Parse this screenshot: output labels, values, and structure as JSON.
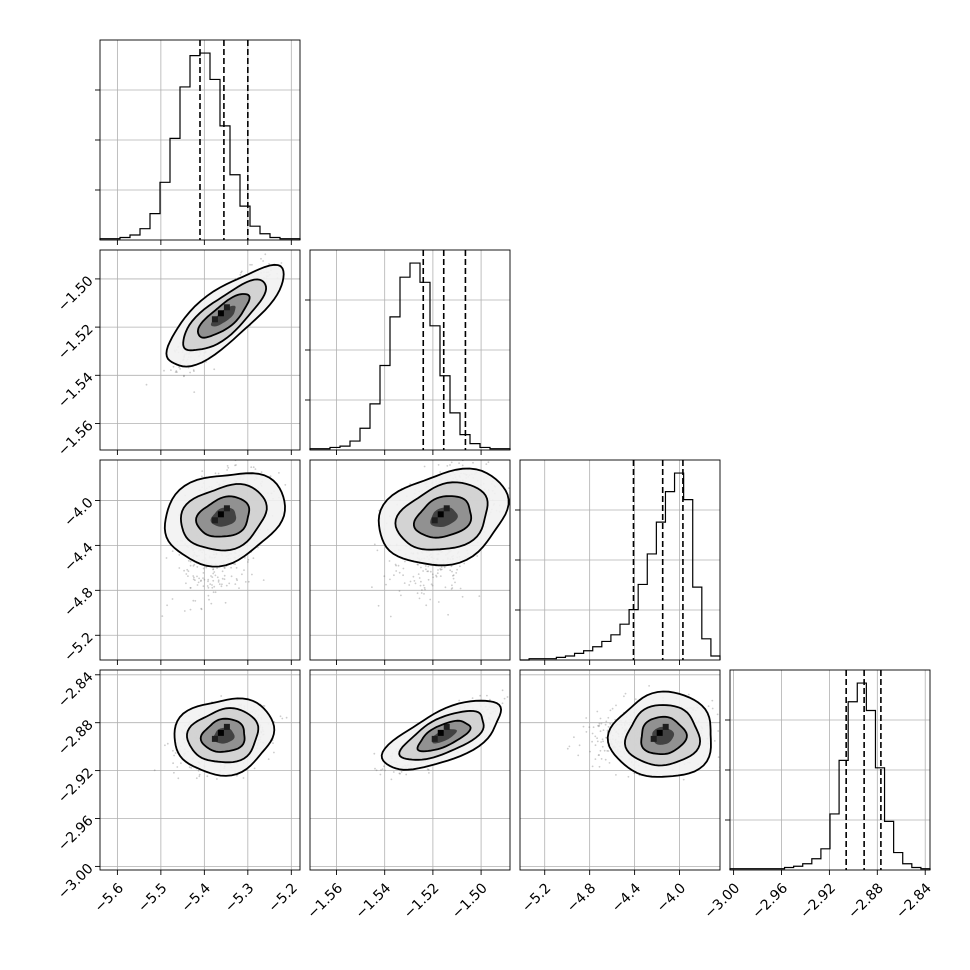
{
  "chart_data": {
    "type": "corner",
    "grid": true,
    "params": [
      {
        "range": [
          -5.64,
          -5.18
        ],
        "ticks": [
          -5.6,
          -5.5,
          -5.4,
          -5.3,
          -5.2
        ],
        "tick_labels": [
          "−5.6",
          "−5.5",
          "−5.4",
          "−5.3",
          "−5.2"
        ],
        "mean": -5.355,
        "sd": 0.042,
        "quantiles": [
          -5.41,
          -5.355,
          -5.3
        ],
        "hist_counts": [
          1,
          1,
          2,
          4,
          9,
          21,
          46,
          81,
          122,
          147,
          149,
          128,
          91,
          52,
          27,
          11,
          5,
          2,
          1,
          1
        ]
      },
      {
        "range": [
          -1.571,
          -1.488
        ],
        "ticks": [
          -1.56,
          -1.54,
          -1.52,
          -1.5
        ],
        "tick_labels": [
          "−1.56",
          "−1.54",
          "−1.52",
          "−1.50"
        ],
        "mean": -1.5155,
        "sd": 0.0085,
        "quantiles": [
          -1.524,
          -1.5155,
          -1.5065
        ],
        "hist_counts": [
          1,
          1,
          2,
          3,
          7,
          17,
          36,
          66,
          104,
          135,
          146,
          131,
          97,
          58,
          29,
          12,
          5,
          2,
          1,
          1
        ]
      },
      {
        "range": [
          -5.42,
          -3.64
        ],
        "ticks": [
          -5.2,
          -4.8,
          -4.4,
          -4.0
        ],
        "tick_labels": [
          "−5.2",
          "−4.8",
          "−4.4",
          "−4.0"
        ],
        "mean": -4.15,
        "sd": 0.18,
        "quantiles": [
          -4.41,
          -4.15,
          -3.97
        ],
        "hist_counts": [
          0,
          1,
          1,
          1,
          2,
          3,
          5,
          7,
          10,
          14,
          19,
          27,
          38,
          57,
          80,
          104,
          127,
          141,
          121,
          55,
          16,
          3
        ]
      },
      {
        "range": [
          -3.003,
          -2.836
        ],
        "ticks": [
          -3.0,
          -2.96,
          -2.92,
          -2.88,
          -2.84
        ],
        "tick_labels": [
          "−3.00",
          "−2.96",
          "−2.92",
          "−2.88",
          "−2.84"
        ],
        "mean": -2.891,
        "sd": 0.011,
        "quantiles": [
          -2.906,
          -2.891,
          -2.877
        ],
        "hist_counts": [
          1,
          1,
          1,
          1,
          1,
          1,
          2,
          3,
          5,
          9,
          17,
          45,
          88,
          135,
          150,
          128,
          82,
          39,
          14,
          5,
          2,
          1
        ]
      }
    ],
    "correlations": {
      "1,0": 0.85,
      "2,0": 0.35,
      "2,1": 0.4,
      "3,0": 0.3,
      "3,1": 0.8,
      "3,2": 0.2
    },
    "colors": {
      "line": "#000000",
      "points": "#6e6e6e",
      "grid": "#b0b0b0"
    }
  }
}
